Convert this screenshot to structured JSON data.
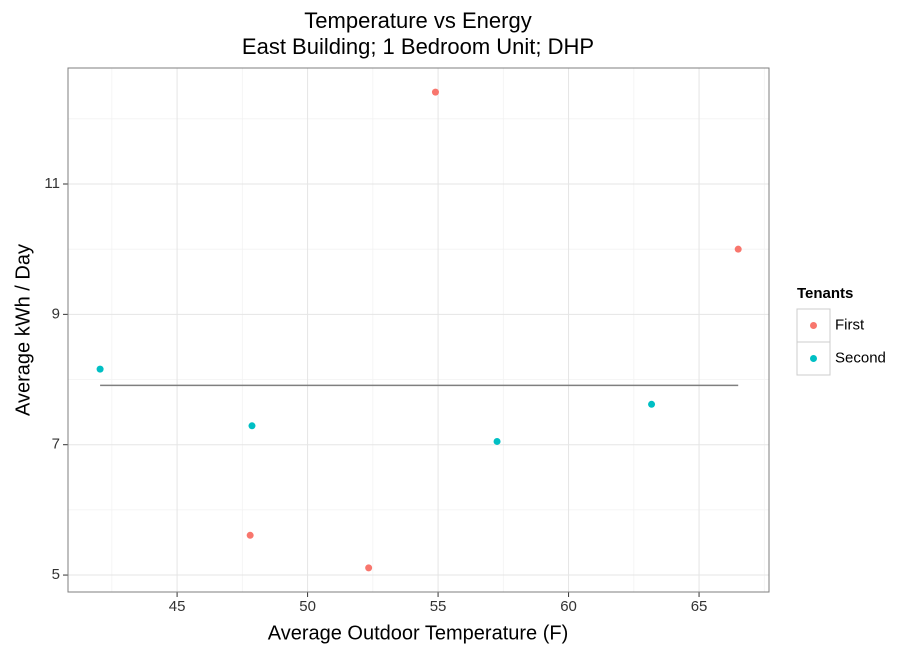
{
  "chart_data": {
    "type": "scatter",
    "title": "Temperature vs Energy",
    "subtitle": "East Building; 1 Bedroom Unit; DHP",
    "x_label": "Average Outdoor Temperature (F)",
    "y_label": "Average kWh / Day",
    "legend_title": "Tenants",
    "legend_position": "right",
    "grid": true,
    "series": [
      {
        "name": "First",
        "color": "#F8766D",
        "x": [
          54.9,
          66.5,
          47.8,
          52.34
        ],
        "values": [
          12.41,
          10.0,
          5.61,
          5.11
        ]
      },
      {
        "name": "Second",
        "color": "#00BFC4",
        "x": [
          42.05,
          47.87,
          57.26,
          63.18
        ],
        "values": [
          8.16,
          7.29,
          7.05,
          7.62
        ]
      }
    ],
    "reference_line": {
      "y": 7.91,
      "x": [
        42.05,
        66.5
      ],
      "color": "#7f7f7f"
    },
    "xlim": [
      40.82,
      67.68
    ],
    "ylim": [
      4.74,
      12.78
    ],
    "xticks": [
      45,
      50,
      55,
      60,
      65
    ],
    "yticks": [
      5,
      7,
      9,
      11
    ],
    "minor_xticks": [
      42.5,
      47.5,
      52.5,
      57.5,
      62.5,
      67.5
    ],
    "minor_yticks": [
      6,
      8,
      10,
      12
    ]
  }
}
